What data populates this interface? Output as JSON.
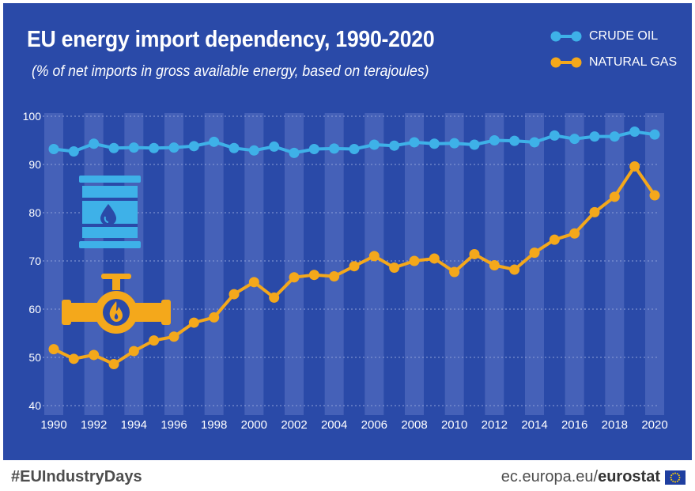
{
  "footer": {
    "hashtag": "#EUIndustryDays",
    "source_domain": "ec.europa.eu/",
    "source_brand": "eurostat"
  },
  "icons": {
    "barrel": "oil-barrel-icon",
    "pipe": "gas-pipe-icon",
    "flag": "eu-flag-icon"
  },
  "colors": {
    "background": "#2a4aa8",
    "band": "#4561b8",
    "crude_oil": "#3eb1e8",
    "natural_gas": "#f4a81b",
    "text": "#ffffff"
  },
  "chart_data": {
    "type": "line",
    "title": "EU energy import dependency, 1990-2020",
    "subtitle": "(% of net imports in gross available energy, based on terajoules)",
    "xlabel": "",
    "ylabel": "",
    "ylim": [
      40,
      100
    ],
    "yticks": [
      "40",
      "50",
      "60",
      "70",
      "80",
      "90",
      "100"
    ],
    "xtick_labels": [
      "1990",
      "1992",
      "1994",
      "1996",
      "1998",
      "2000",
      "2002",
      "2004",
      "2006",
      "2008",
      "2010",
      "2012",
      "2014",
      "2016",
      "2018",
      "2020"
    ],
    "x": [
      1990,
      1991,
      1992,
      1993,
      1994,
      1995,
      1996,
      1997,
      1998,
      1999,
      2000,
      2001,
      2002,
      2003,
      2004,
      2005,
      2006,
      2007,
      2008,
      2009,
      2010,
      2011,
      2012,
      2013,
      2014,
      2015,
      2016,
      2017,
      2018,
      2019,
      2020
    ],
    "legend_position": "top-right",
    "grid": true,
    "series": [
      {
        "name": "CRUDE OIL",
        "color": "#3eb1e8",
        "values": [
          93.2,
          92.7,
          94.3,
          93.4,
          93.5,
          93.4,
          93.5,
          93.8,
          94.7,
          93.4,
          92.9,
          93.7,
          92.4,
          93.2,
          93.3,
          93.2,
          94.1,
          93.9,
          94.6,
          94.3,
          94.4,
          94.1,
          95.0,
          94.9,
          94.6,
          96.0,
          95.3,
          95.8,
          95.8,
          96.8,
          96.2
        ]
      },
      {
        "name": "NATURAL GAS",
        "color": "#f4a81b",
        "values": [
          51.7,
          49.7,
          50.5,
          48.6,
          51.3,
          53.5,
          54.3,
          57.2,
          58.3,
          63.1,
          65.6,
          62.4,
          66.6,
          67.1,
          66.8,
          68.9,
          71.0,
          68.6,
          70.0,
          70.5,
          67.7,
          71.4,
          69.1,
          68.2,
          71.7,
          74.4,
          75.7,
          80.1,
          83.3,
          89.6,
          83.6
        ]
      }
    ]
  }
}
